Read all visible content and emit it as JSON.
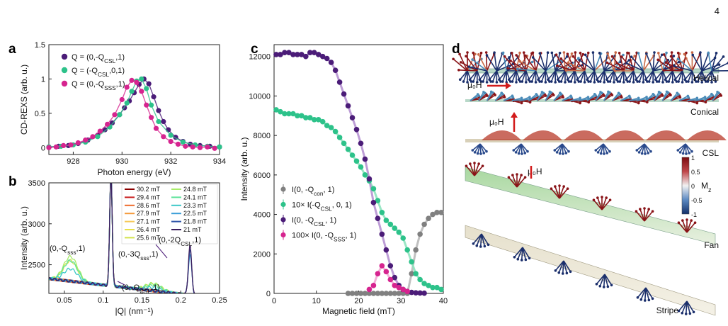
{
  "page_number": "4",
  "panel_labels": [
    "a",
    "b",
    "c",
    "d"
  ],
  "chart_data": [
    {
      "panel": "a",
      "type": "scatter",
      "xlabel": "Photon energy (eV)",
      "ylabel": "CD-REXS (arb. u.)",
      "xlim": [
        927,
        934
      ],
      "ylim": [
        -0.1,
        1.5
      ],
      "xticks": [
        "928",
        "930",
        "932",
        "934"
      ],
      "yticks": [
        "0",
        "0.5",
        "1",
        "1.5"
      ],
      "legend_position": "top-left",
      "series": [
        {
          "name": "Q = (0,-Q_CSL,1)",
          "color": "#4b1c78",
          "x": [
            927.0,
            927.4,
            927.8,
            928.2,
            928.6,
            929.0,
            929.3,
            929.6,
            929.9,
            930.1,
            930.3,
            930.5,
            930.7,
            930.9,
            931.1,
            931.3,
            931.5,
            931.7,
            931.9,
            932.2,
            932.5,
            932.8,
            933.2,
            933.6,
            934.0
          ],
          "y": [
            0.01,
            0.02,
            0.03,
            0.06,
            0.11,
            0.18,
            0.26,
            0.36,
            0.48,
            0.58,
            0.68,
            0.8,
            0.92,
            1.0,
            0.93,
            0.74,
            0.54,
            0.38,
            0.26,
            0.15,
            0.09,
            0.05,
            0.03,
            0.02,
            0.01
          ]
        },
        {
          "name": "Q = (-Q_CSL,0,1)",
          "color": "#2dc28a",
          "x": [
            927.0,
            927.5,
            928.0,
            928.5,
            929.0,
            929.5,
            929.9,
            930.2,
            930.4,
            930.6,
            930.8,
            931.0,
            931.2,
            931.5,
            932.0,
            932.5,
            933.0,
            933.5,
            934.0
          ],
          "y": [
            0.01,
            0.02,
            0.04,
            0.08,
            0.16,
            0.3,
            0.48,
            0.65,
            0.82,
            0.97,
            1.0,
            0.86,
            0.62,
            0.38,
            0.18,
            0.08,
            0.04,
            0.02,
            0.01
          ]
        },
        {
          "name": "Q = (0,-Q_SSS,1)",
          "color": "#d6248f",
          "x": [
            927.0,
            927.3,
            927.6,
            927.9,
            928.2,
            928.5,
            928.8,
            929.1,
            929.4,
            929.7,
            930.0,
            930.2,
            930.4,
            930.6,
            930.8,
            931.0,
            931.2,
            931.4,
            931.7,
            932.0,
            932.3,
            932.6,
            932.9,
            933.2,
            933.5,
            933.8
          ],
          "y": [
            0.0,
            0.01,
            0.03,
            0.04,
            0.07,
            0.11,
            0.16,
            0.24,
            0.34,
            0.48,
            0.7,
            0.88,
            0.98,
            0.95,
            0.82,
            0.62,
            0.44,
            0.28,
            0.16,
            0.09,
            0.05,
            0.02,
            0.01,
            0.0,
            0.01,
            -0.01
          ]
        }
      ]
    },
    {
      "panel": "b",
      "type": "line",
      "xlabel": "|Q| (nm⁻¹)",
      "ylabel": "Intensity (arb. u.)",
      "xlim": [
        0.03,
        0.25
      ],
      "ylim": [
        2150,
        3500
      ],
      "xticks": [
        "0.05",
        "0.1",
        "0.15",
        "0.2",
        "0.25"
      ],
      "yticks": [
        "2500",
        "3000",
        "3500"
      ],
      "legend_position": "top-right",
      "series": [
        {
          "name": "30.2 mT",
          "color": "#8b0000",
          "peaks": {
            "csl": [
              0.11,
              1400
            ],
            "csl2": [
              0.212,
              0
            ]
          }
        },
        {
          "name": "29.4 mT",
          "color": "#c81e1e",
          "peaks": {
            "csl": [
              0.11,
              1400
            ]
          }
        },
        {
          "name": "28.6 mT",
          "color": "#ee6a2a",
          "peaks": {
            "csl": [
              0.11,
              1400
            ]
          }
        },
        {
          "name": "27.9 mT",
          "color": "#f59a3a",
          "peaks": {
            "csl": [
              0.11,
              1400
            ]
          }
        },
        {
          "name": "27.1 mT",
          "color": "#f6c95a",
          "peaks": {
            "csl": [
              0.11,
              1400
            ]
          }
        },
        {
          "name": "26.4 mT",
          "color": "#e8e04a",
          "peaks": {
            "csl": [
              0.11,
              1400
            ]
          }
        },
        {
          "name": "25.6 mT",
          "color": "#d2e24a",
          "peaks": {
            "csl": [
              0.11,
              1400
            ],
            "sss": [
              0.058,
              250
            ],
            "sss3": [
              0.165,
              80
            ]
          }
        },
        {
          "name": "24.8 mT",
          "color": "#a8ec6a",
          "peaks": {
            "csl": [
              0.11,
              1400
            ],
            "sss": [
              0.058,
              300
            ],
            "sss3": [
              0.165,
              90
            ]
          }
        },
        {
          "name": "24.1 mT",
          "color": "#5ee39a",
          "peaks": {
            "csl": [
              0.11,
              1400
            ],
            "sss": [
              0.058,
              250
            ],
            "sss3": [
              0.165,
              70
            ]
          }
        },
        {
          "name": "23.3 mT",
          "color": "#3cc8c8",
          "peaks": {
            "csl": [
              0.11,
              1400
            ],
            "sss": [
              0.058,
              150
            ],
            "sss3": [
              0.165,
              40
            ]
          }
        },
        {
          "name": "22.5 mT",
          "color": "#3a9ed8",
          "peaks": {
            "csl": [
              0.11,
              1400
            ],
            "csl2": [
              0.212,
              500
            ]
          }
        },
        {
          "name": "21.8 mT",
          "color": "#3055a8",
          "peaks": {
            "csl": [
              0.11,
              1400
            ],
            "csl2": [
              0.212,
              550
            ]
          }
        },
        {
          "name": "21 mT",
          "color": "#3c1e5c",
          "peaks": {
            "csl": [
              0.11,
              1400
            ],
            "csl2": [
              0.212,
              600
            ]
          }
        }
      ],
      "annotations": [
        "(0,-Q_sss,1)",
        "(0,-3Q_sss,1)",
        "(0,-2Q_CSL,1)",
        "(0,-Q_CSL,1)"
      ]
    },
    {
      "panel": "c",
      "type": "scatter",
      "xlabel": "Magnetic field (mT)",
      "ylabel": "Intensity (arb. u.)",
      "xlim": [
        0,
        40
      ],
      "ylim": [
        0,
        12600
      ],
      "xticks": [
        "0",
        "10",
        "20",
        "30",
        "40"
      ],
      "yticks": [
        "0",
        "2000",
        "4000",
        "6000",
        "8000",
        "10000",
        "12000"
      ],
      "legend_position": "center-left",
      "series": [
        {
          "name": "I(0, -Q_con, 1)",
          "color": "#808080",
          "line_color": "#b9b9b9",
          "x": [
            17.5,
            18.5,
            19.5,
            20.5,
            21.5,
            22.5,
            23.5,
            24.5,
            25.5,
            26.5,
            27.5,
            28.5,
            29.5,
            30.5,
            31.5,
            32.5,
            33.5,
            34.5,
            35.5,
            36.5,
            37.5,
            38.5,
            39.5
          ],
          "y": [
            0,
            0,
            0,
            0,
            0,
            0,
            0,
            0,
            0,
            0,
            0,
            0,
            0,
            0,
            0,
            1000,
            2200,
            3000,
            3500,
            3800,
            4000,
            4100,
            4100
          ]
        },
        {
          "name": "10× I(-Q_CSL, 0, 1)",
          "color": "#2dc28a",
          "line_color": "#8fe3bf",
          "x": [
            0.5,
            1.5,
            2.5,
            3.5,
            4.5,
            5.5,
            6.5,
            7.5,
            8.5,
            9.5,
            10.5,
            11.5,
            12.5,
            13.5,
            14.5,
            15.5,
            16.5,
            17.5,
            18.5,
            19.5,
            20.5,
            21.5,
            22.5,
            23.5,
            24.5,
            25.5,
            26.5,
            27.5,
            28.5,
            29.5,
            30.5,
            31.5,
            32.5,
            33.5,
            34.5,
            35.5,
            36.5,
            37.5,
            38.5,
            39.5
          ],
          "y": [
            9300,
            9200,
            9100,
            9100,
            9100,
            9000,
            9000,
            8900,
            8900,
            8800,
            8800,
            8700,
            8500,
            8400,
            8200,
            7900,
            7600,
            7300,
            7000,
            6700,
            6400,
            6000,
            5700,
            5300,
            4700,
            4100,
            3700,
            3500,
            3300,
            3100,
            2800,
            2200,
            1600,
            1000,
            700,
            500,
            400,
            300,
            300,
            200
          ]
        },
        {
          "name": "I(0, -Q_CSL, 1)",
          "color": "#4b1c78",
          "line_color": "#b692d2",
          "x": [
            0.5,
            1.5,
            2.5,
            3.5,
            4.5,
            5.5,
            6.5,
            7.5,
            8.5,
            9.5,
            10.5,
            11.5,
            12.5,
            13.5,
            14.5,
            15.5,
            16.5,
            17.5,
            18.5,
            19.5,
            20.5,
            21.5,
            22.5,
            23.5,
            24.5,
            25.5,
            26.5,
            27.5,
            28.5,
            29.5,
            30.5,
            31.5,
            32.5,
            33.5,
            34.5,
            35.5
          ],
          "y": [
            12100,
            12100,
            12200,
            12200,
            12100,
            12100,
            12100,
            12000,
            12200,
            12200,
            12100,
            12000,
            11900,
            11700,
            11300,
            10700,
            10100,
            9500,
            8900,
            8300,
            7600,
            6800,
            5800,
            4600,
            3800,
            3000,
            2200,
            1400,
            800,
            400,
            200,
            100,
            50,
            30,
            20,
            10
          ]
        },
        {
          "name": "100× I(0, -Q_SSS, 1)",
          "color": "#d6248f",
          "line_color": "#f2a6d4",
          "x": [
            22.5,
            23.5,
            24.5,
            25.5,
            26.5,
            27.5,
            28.5,
            29.5,
            30.5,
            31.5
          ],
          "y": [
            200,
            400,
            1000,
            1400,
            1100,
            700,
            400,
            300,
            200,
            100
          ]
        }
      ]
    }
  ],
  "panel_d": {
    "labels": [
      "Helical",
      "Conical",
      "CSL",
      "Fan",
      "Stripe"
    ],
    "field_labels": [
      "μ₀H",
      "μ₀H",
      "μ₀H"
    ],
    "colorbar": {
      "label": "M_z",
      "ticks": [
        "1",
        "0.5",
        "0",
        "-0.5",
        "-1"
      ],
      "top_color": "#7a0c10",
      "mid_color": "#f2f2f2",
      "bottom_color": "#13306a"
    }
  }
}
